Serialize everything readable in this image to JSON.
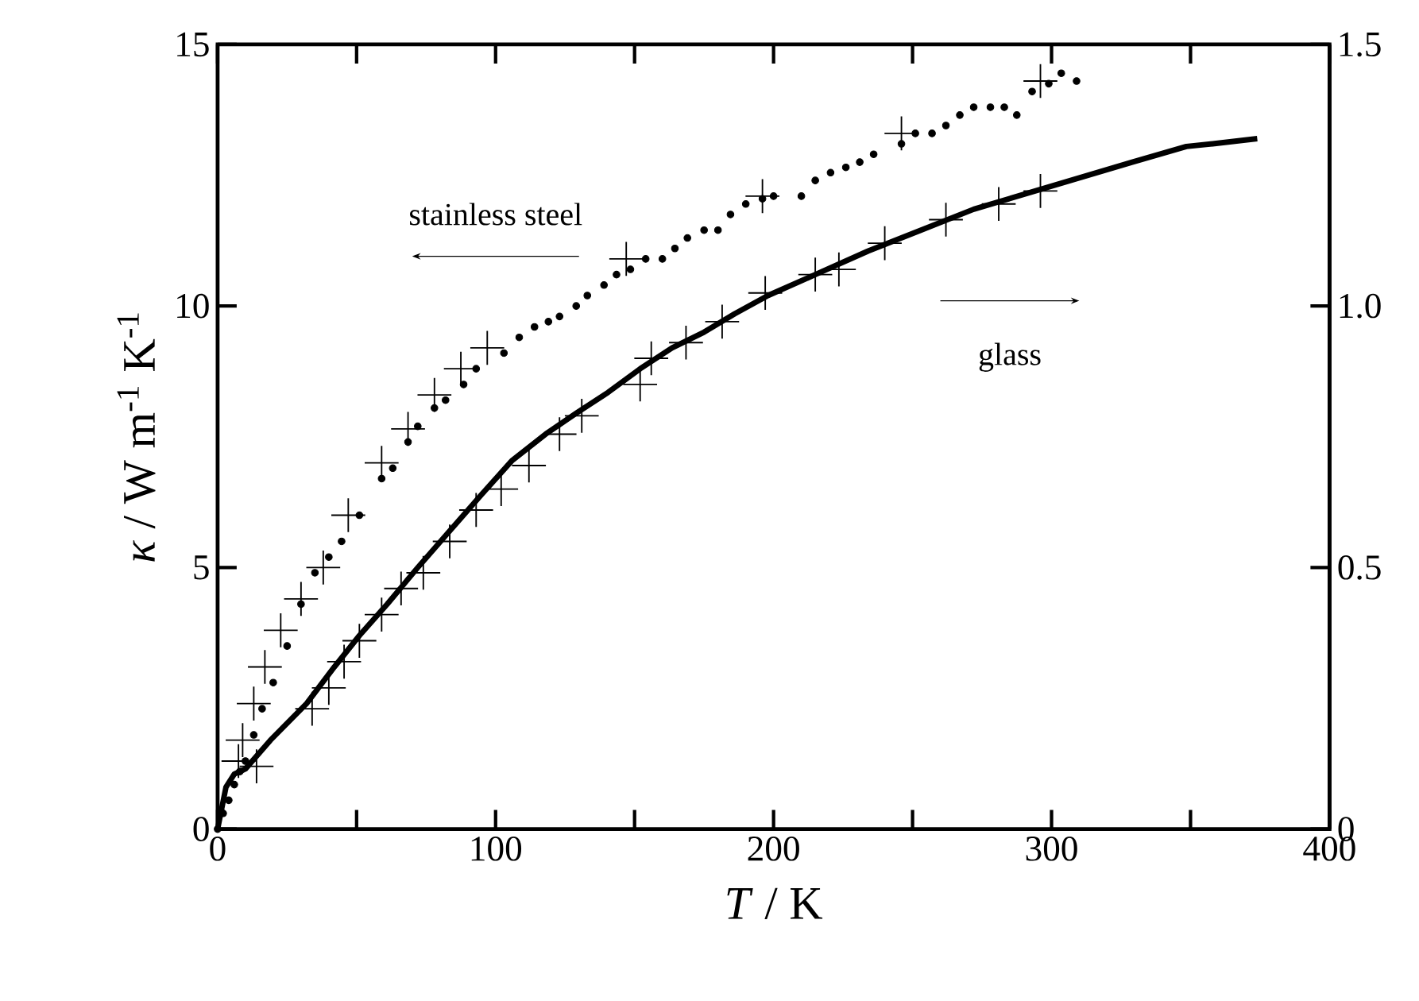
{
  "chart_data": {
    "type": "scatter",
    "xlabel": "*T* / K",
    "ylabel": "*κ* / W m$^{-1}$ K$^{-1}$",
    "annotations": [
      "stainless steel",
      "glass"
    ],
    "xlim": [
      0,
      400
    ],
    "ylim": [
      0,
      15
    ],
    "y2lim": [
      0,
      1.5
    ],
    "xticks": [
      0,
      {
        "value": 50,
        "label": null
      },
      100,
      {
        "value": 150,
        "label": null
      },
      200,
      {
        "value": 250,
        "label": null
      },
      300,
      {
        "value": 350,
        "label": null
      },
      400
    ],
    "yticks": [
      0,
      5,
      10,
      15
    ],
    "y2ticks": [
      0,
      0.5,
      {
        "value": 1,
        "label": "1.0"
      },
      1.5
    ],
    "series": [
      {
        "type": "line",
        "line_style": "solid",
        "marker": "none",
        "color": "#000000",
        "x": [
          0,
          3,
          6,
          10,
          19,
          32,
          42,
          51,
          61,
          72,
          83.5,
          95,
          106,
          118,
          129,
          140.5,
          152,
          163.5,
          175,
          186,
          198,
          215,
          234,
          253,
          272,
          291,
          310,
          329,
          348.5,
          358,
          374
        ],
        "values": [
          0,
          0.08,
          0.105,
          0.115,
          0.17,
          0.24,
          0.31,
          0.37,
          0.43,
          0.5,
          0.57,
          0.64,
          0.705,
          0.755,
          0.795,
          0.835,
          0.88,
          0.92,
          0.95,
          0.985,
          1.02,
          1.06,
          1.105,
          1.145,
          1.185,
          1.215,
          1.245,
          1.275,
          1.305,
          1.31,
          1.32
        ],
        "axis": "y2"
      },
      {
        "marker": "cross",
        "color": "#000000",
        "x": [
          14,
          34,
          40,
          45.5,
          51,
          59,
          66,
          74,
          83.5,
          93,
          102,
          112,
          123,
          131,
          152,
          156,
          168.5,
          181.5,
          197,
          215,
          223.5,
          240,
          262,
          281,
          296
        ],
        "values": [
          0.12,
          0.23,
          0.27,
          0.32,
          0.36,
          0.41,
          0.46,
          0.49,
          0.55,
          0.61,
          0.65,
          0.695,
          0.755,
          0.79,
          0.85,
          0.9,
          0.93,
          0.97,
          1.025,
          1.06,
          1.07,
          1.12,
          1.165,
          1.195,
          1.22
        ],
        "axis": "y2"
      },
      {
        "marker": "circle",
        "color": "#000000",
        "x": [
          0,
          2,
          4,
          6,
          8,
          10,
          13,
          16,
          20,
          25,
          30,
          35,
          40,
          44.6,
          51,
          59,
          63,
          68.5,
          72,
          78,
          82,
          88.5,
          93,
          103,
          108.5,
          114,
          119,
          123,
          129,
          133,
          139,
          143.5,
          148.5,
          154,
          160,
          164.5,
          169,
          175,
          180,
          184.5,
          190,
          196,
          200,
          210,
          215,
          220.5,
          226,
          231,
          236,
          246,
          251,
          257,
          262,
          267,
          272,
          278,
          283,
          287.5,
          293,
          299,
          303.5,
          309
        ],
        "values": [
          0,
          0.3,
          0.55,
          0.85,
          1.1,
          1.3,
          1.8,
          2.3,
          2.8,
          3.5,
          4.3,
          4.9,
          5.2,
          5.5,
          6.0,
          6.7,
          6.9,
          7.4,
          7.7,
          8.05,
          8.2,
          8.5,
          8.8,
          9.1,
          9.4,
          9.6,
          9.7,
          9.8,
          10.0,
          10.2,
          10.4,
          10.6,
          10.7,
          10.9,
          10.9,
          11.1,
          11.3,
          11.45,
          11.45,
          11.75,
          11.95,
          12.05,
          12.1,
          12.1,
          12.4,
          12.55,
          12.65,
          12.75,
          12.9,
          13.1,
          13.3,
          13.3,
          13.45,
          13.65,
          13.8,
          13.8,
          13.8,
          13.65,
          14.1,
          14.25,
          14.45,
          14.3
        ]
      },
      {
        "marker": "cross",
        "color": "#000000",
        "x": [
          7.5,
          9,
          13,
          17,
          22.7,
          30,
          38,
          47,
          59,
          68.5,
          78,
          87.5,
          97,
          147,
          196,
          246,
          296
        ],
        "values": [
          1.3,
          1.7,
          2.4,
          3.1,
          3.8,
          4.4,
          5.0,
          6.0,
          7.0,
          7.65,
          8.3,
          8.8,
          9.2,
          10.9,
          12.1,
          13.3,
          14.3
        ]
      }
    ]
  }
}
